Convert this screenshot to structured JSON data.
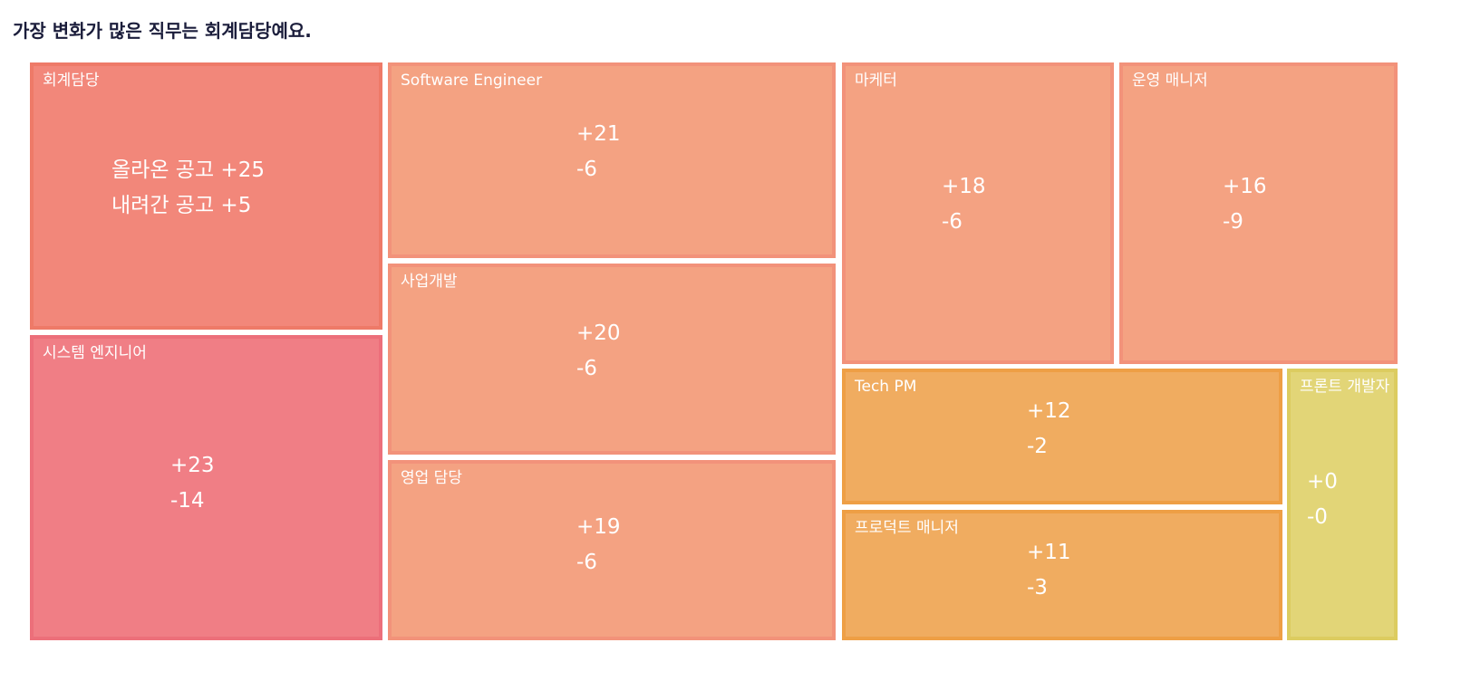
{
  "headline": "가장 변화가 많은 직무는 회계담당예요.",
  "colors": {
    "red": "#f2877a",
    "red_border": "#ee7a68",
    "pink": "#f07e85",
    "pink_border": "#ec6f7a",
    "salmon": "#f4a282",
    "salmon_border": "#f2927a",
    "orange": "#f0ac60",
    "orange_border": "#ee9f45",
    "yellow": "#e2d577",
    "yellow_border": "#dccc60"
  },
  "chart_data": {
    "type": "treemap",
    "title": "가장 변화가 많은 직무는 회계담당예요.",
    "added_label": "올라온 공고",
    "removed_label": "내려간 공고",
    "items": [
      {
        "name": "회계담당",
        "added": "+25",
        "removed": "+5",
        "color": "red",
        "detailed": true
      },
      {
        "name": "시스템 엔지니어",
        "added": "+23",
        "removed": "-14",
        "color": "pink"
      },
      {
        "name": "Software Engineer",
        "added": "+21",
        "removed": "-6",
        "color": "salmon"
      },
      {
        "name": "사업개발",
        "added": "+20",
        "removed": "-6",
        "color": "salmon"
      },
      {
        "name": "영업 담당",
        "added": "+19",
        "removed": "-6",
        "color": "salmon"
      },
      {
        "name": "마케터",
        "added": "+18",
        "removed": "-6",
        "color": "salmon"
      },
      {
        "name": "운영 매니저",
        "added": "+16",
        "removed": "-9",
        "color": "salmon"
      },
      {
        "name": "Tech PM",
        "added": "+12",
        "removed": "-2",
        "color": "orange"
      },
      {
        "name": "프로덕트 매니저",
        "added": "+11",
        "removed": "-3",
        "color": "orange"
      },
      {
        "name": "프론트 개발자",
        "added": "+0",
        "removed": "-0",
        "color": "yellow"
      }
    ]
  }
}
